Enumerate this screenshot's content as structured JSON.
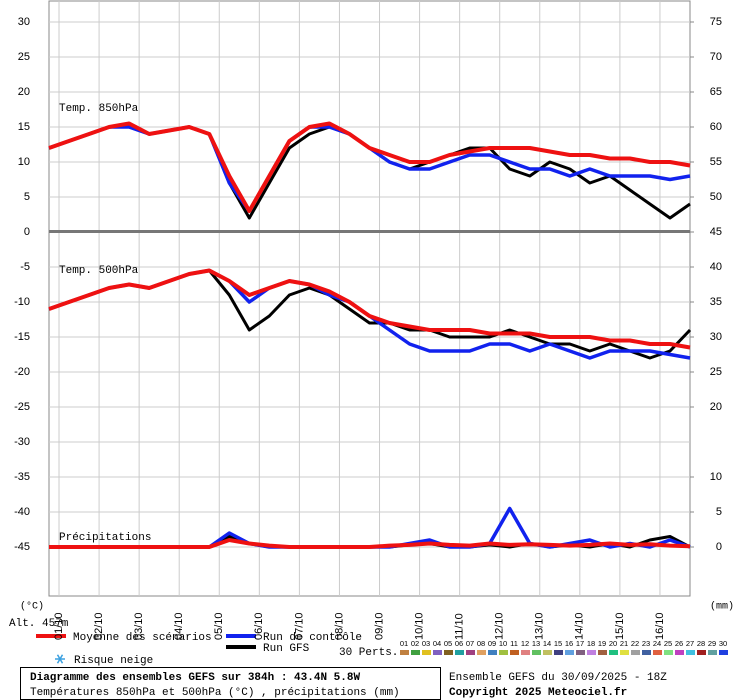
{
  "chart_data": {
    "type": "line",
    "panel_labels": [
      "Temp. 850hPa",
      "Temp. 500hPa",
      "Précipitations"
    ],
    "y_unit": "(°C)",
    "y2_unit": "(mm)",
    "altitude": "Alt. 457m",
    "x": [
      0,
      12,
      24,
      36,
      48,
      60,
      72,
      84,
      96,
      108,
      120,
      132,
      144,
      156,
      168,
      180,
      192,
      204,
      216,
      228,
      240,
      252,
      264,
      276,
      288,
      300,
      312,
      324,
      336,
      348,
      360,
      372,
      384
    ],
    "xlim": [
      0,
      384
    ],
    "xticks": [
      {
        "value": 6,
        "label": "01/10"
      },
      {
        "value": 30,
        "label": "02/10"
      },
      {
        "value": 54,
        "label": "03/10"
      },
      {
        "value": 78,
        "label": "04/10"
      },
      {
        "value": 102,
        "label": "05/10"
      },
      {
        "value": 126,
        "label": "06/10"
      },
      {
        "value": 150,
        "label": "07/10"
      },
      {
        "value": 174,
        "label": "08/10"
      },
      {
        "value": 198,
        "label": "09/10"
      },
      {
        "value": 222,
        "label": "10/10"
      },
      {
        "value": 246,
        "label": "11/10"
      },
      {
        "value": 270,
        "label": "12/10"
      },
      {
        "value": 294,
        "label": "13/10"
      },
      {
        "value": 318,
        "label": "14/10"
      },
      {
        "value": 342,
        "label": "15/10"
      },
      {
        "value": 366,
        "label": "16/10"
      }
    ],
    "ylim": [
      -52,
      33
    ],
    "yticks": [
      30,
      25,
      20,
      15,
      10,
      5,
      0,
      -5,
      -10,
      -15,
      -20,
      -25,
      -30,
      -35,
      -40,
      -45
    ],
    "y2lim": [
      -7,
      78
    ],
    "y2ticks": [
      75,
      70,
      65,
      60,
      55,
      50,
      45,
      40,
      35,
      30,
      25,
      20,
      10,
      5,
      0
    ],
    "grid": true,
    "series": [
      {
        "name": "Moyenne des scénarios",
        "color": "#ee1111",
        "temp_850": [
          12,
          13,
          14,
          15,
          15.5,
          14,
          14.5,
          15,
          14,
          8,
          3,
          8,
          13,
          15,
          15.5,
          14,
          12,
          11,
          10,
          10,
          11,
          11.5,
          12,
          12,
          12,
          11.5,
          11,
          11,
          10.5,
          10.5,
          10,
          10,
          9.5
        ],
        "temp_500": [
          -11,
          -10,
          -9,
          -8,
          -7.5,
          -8,
          -7,
          -6,
          -5.5,
          -7,
          -9,
          -8,
          -7,
          -7.5,
          -8.5,
          -10,
          -12,
          -13,
          -13.5,
          -14,
          -14,
          -14,
          -14.5,
          -14.5,
          -14.5,
          -15,
          -15,
          -15,
          -15.5,
          -15.5,
          -16,
          -16,
          -16.5
        ],
        "precip": [
          0,
          0,
          0,
          0,
          0,
          0,
          0,
          0,
          0,
          1,
          0.5,
          0.2,
          0,
          0,
          0,
          0,
          0,
          0.2,
          0.3,
          0.5,
          0.3,
          0.2,
          0.5,
          0.3,
          0.4,
          0.3,
          0.2,
          0.3,
          0.5,
          0.3,
          0.4,
          0.2,
          0.1
        ]
      },
      {
        "name": "Run de contrôle",
        "color": "#1122ee",
        "temp_850": [
          12,
          13,
          14,
          15,
          15,
          14,
          14.5,
          15,
          14,
          7,
          3,
          8,
          13,
          15,
          15,
          14,
          12,
          10,
          9,
          9,
          10,
          11,
          11,
          10,
          9,
          9,
          8,
          9,
          8,
          8,
          8,
          7.5,
          8
        ],
        "temp_500": [
          -11,
          -10,
          -9,
          -8,
          -7.5,
          -8,
          -7,
          -6,
          -5.5,
          -7,
          -10,
          -8,
          -7,
          -7.5,
          -9,
          -10,
          -12,
          -14,
          -16,
          -17,
          -17,
          -17,
          -16,
          -16,
          -17,
          -16,
          -17,
          -18,
          -17,
          -17,
          -17,
          -17.5,
          -18
        ],
        "precip": [
          0,
          0,
          0,
          0,
          0,
          0,
          0,
          0,
          0,
          2,
          0.5,
          0,
          0,
          0,
          0,
          0,
          0,
          0,
          0.5,
          1,
          0,
          0,
          0.5,
          5.5,
          0.5,
          0,
          0.5,
          1,
          0,
          0.5,
          0,
          1,
          0
        ]
      },
      {
        "name": "Run GFS",
        "color": "#000000",
        "temp_850": [
          12,
          13,
          14,
          15,
          15,
          14,
          14.5,
          15,
          14,
          7,
          2,
          7,
          12,
          14,
          15,
          14,
          12,
          10,
          9,
          10,
          11,
          12,
          12,
          9,
          8,
          10,
          9,
          7,
          8,
          6,
          4,
          2,
          4
        ],
        "temp_500": [
          -11,
          -10,
          -9,
          -8,
          -7.5,
          -8,
          -7,
          -6,
          -5.5,
          -9,
          -14,
          -12,
          -9,
          -8,
          -9,
          -11,
          -13,
          -13,
          -14,
          -14,
          -15,
          -15,
          -15,
          -14,
          -15,
          -16,
          -16,
          -17,
          -16,
          -17,
          -18,
          -17,
          -14
        ],
        "precip": [
          0,
          0,
          0,
          0,
          0,
          0,
          0,
          0,
          0,
          1.5,
          0.5,
          0,
          0,
          0,
          0,
          0,
          0,
          0,
          0.3,
          0.5,
          0,
          0,
          0.3,
          0,
          0.5,
          0,
          0.3,
          0,
          0.5,
          0,
          1,
          1.5,
          0
        ]
      }
    ],
    "snow_label": "Risque neige",
    "perturbations_label": "30 Perts.",
    "perturbations": [
      {
        "label": "01",
        "color": "#c08040"
      },
      {
        "label": "02",
        "color": "#40a040"
      },
      {
        "label": "03",
        "color": "#e0c020"
      },
      {
        "label": "04",
        "color": "#8060c0"
      },
      {
        "label": "05",
        "color": "#806020"
      },
      {
        "label": "06",
        "color": "#20a0a0"
      },
      {
        "label": "07",
        "color": "#a04080"
      },
      {
        "label": "08",
        "color": "#e0a060"
      },
      {
        "label": "09",
        "color": "#4080c0"
      },
      {
        "label": "10",
        "color": "#a0c040"
      },
      {
        "label": "11",
        "color": "#c06020"
      },
      {
        "label": "12",
        "color": "#e08080"
      },
      {
        "label": "13",
        "color": "#60c060"
      },
      {
        "label": "14",
        "color": "#c0c060"
      },
      {
        "label": "15",
        "color": "#404080"
      },
      {
        "label": "16",
        "color": "#60a0e0"
      },
      {
        "label": "17",
        "color": "#806080"
      },
      {
        "label": "18",
        "color": "#c080e0"
      },
      {
        "label": "19",
        "color": "#a06040"
      },
      {
        "label": "20",
        "color": "#20c080"
      },
      {
        "label": "21",
        "color": "#e0e040"
      },
      {
        "label": "22",
        "color": "#a0a0a0"
      },
      {
        "label": "23",
        "color": "#4060a0"
      },
      {
        "label": "24",
        "color": "#e06040"
      },
      {
        "label": "25",
        "color": "#80e080"
      },
      {
        "label": "26",
        "color": "#c040c0"
      },
      {
        "label": "27",
        "color": "#40c0e0"
      },
      {
        "label": "28",
        "color": "#a02020"
      },
      {
        "label": "29",
        "color": "#60a0a0"
      },
      {
        "label": "30",
        "color": "#2040e0"
      }
    ],
    "title": "Diagramme des ensembles GEFS sur 384h : 43.4N 5.8W",
    "subtitle": "Températures 850hPa et 500hPa (°C) , précipitations (mm)",
    "run_info": "Ensemble GEFS du 30/09/2025 - 18Z",
    "copyright": "Copyright 2025 Meteociel.fr"
  }
}
